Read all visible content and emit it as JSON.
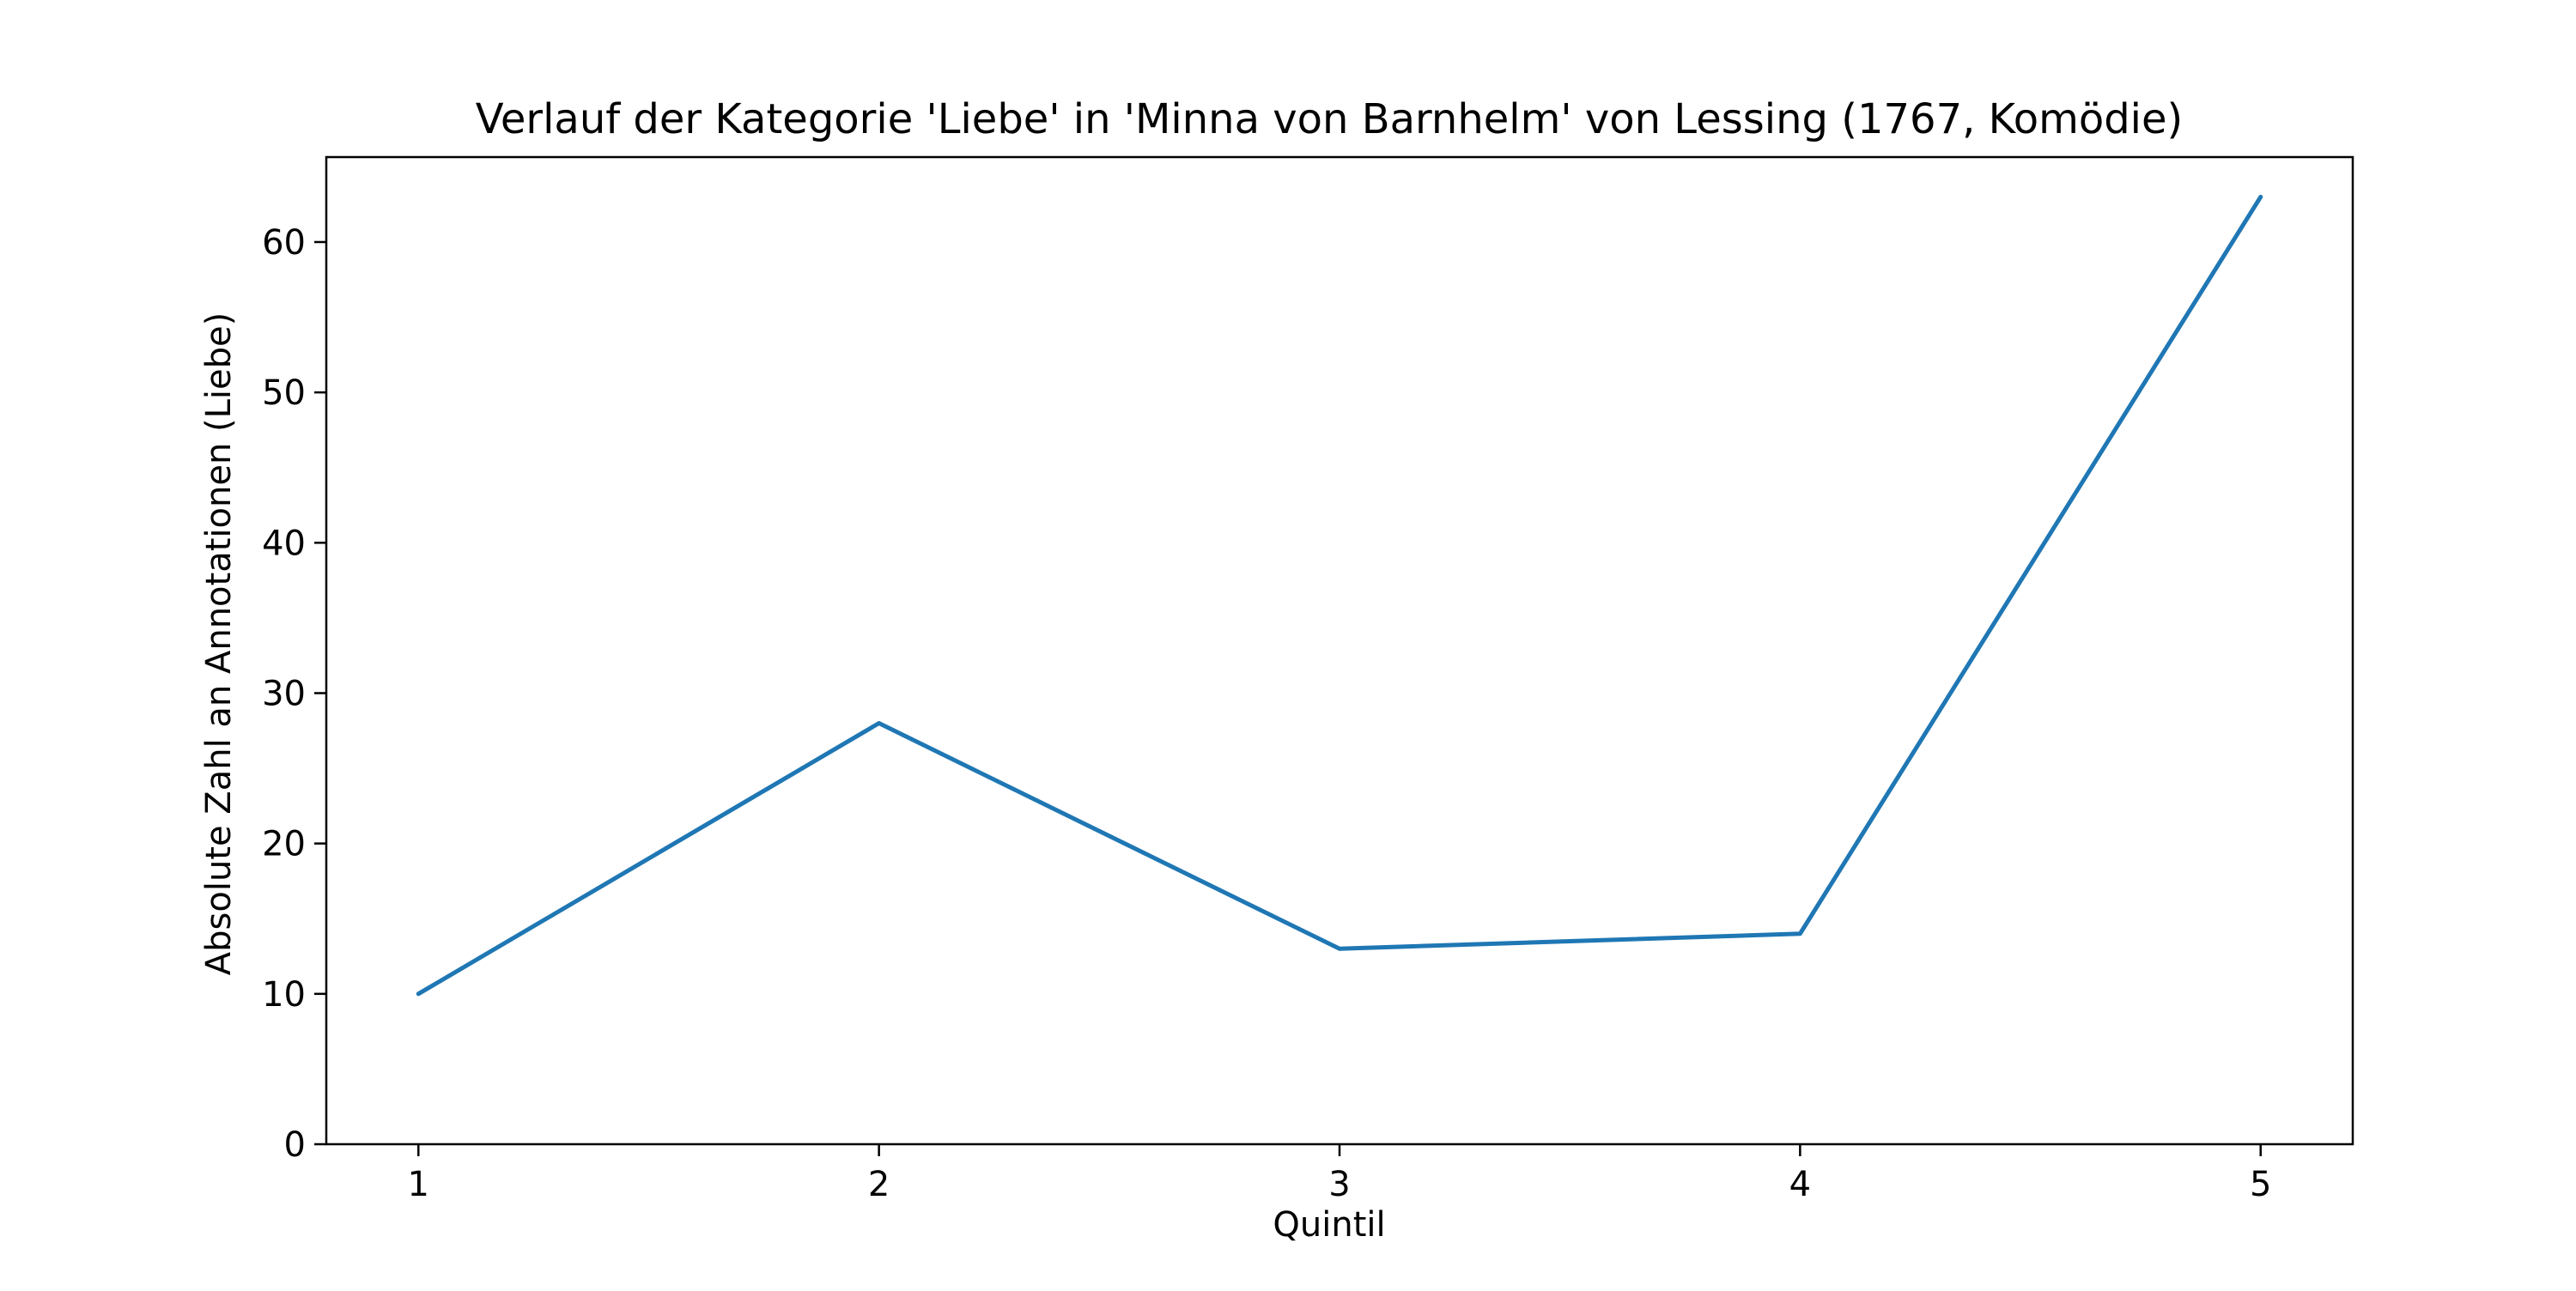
{
  "chart_data": {
    "type": "line",
    "title": "Verlauf der Kategorie 'Liebe' in 'Minna von Barnhelm' von Lessing (1767, Komödie)",
    "xlabel": "Quintil",
    "ylabel": "Absolute Zahl an Annotationen (Liebe)",
    "x": [
      1,
      2,
      3,
      4,
      5
    ],
    "series": [
      {
        "values": [
          10,
          28,
          13,
          14,
          63
        ]
      }
    ],
    "xlim": [
      0.8,
      5.2
    ],
    "ylim": [
      0,
      65.65
    ],
    "x_ticks": [
      1,
      2,
      3,
      4,
      5
    ],
    "y_ticks": [
      0,
      10,
      20,
      30,
      40,
      50,
      60
    ],
    "grid": false,
    "line_color": "#1f77b4"
  }
}
